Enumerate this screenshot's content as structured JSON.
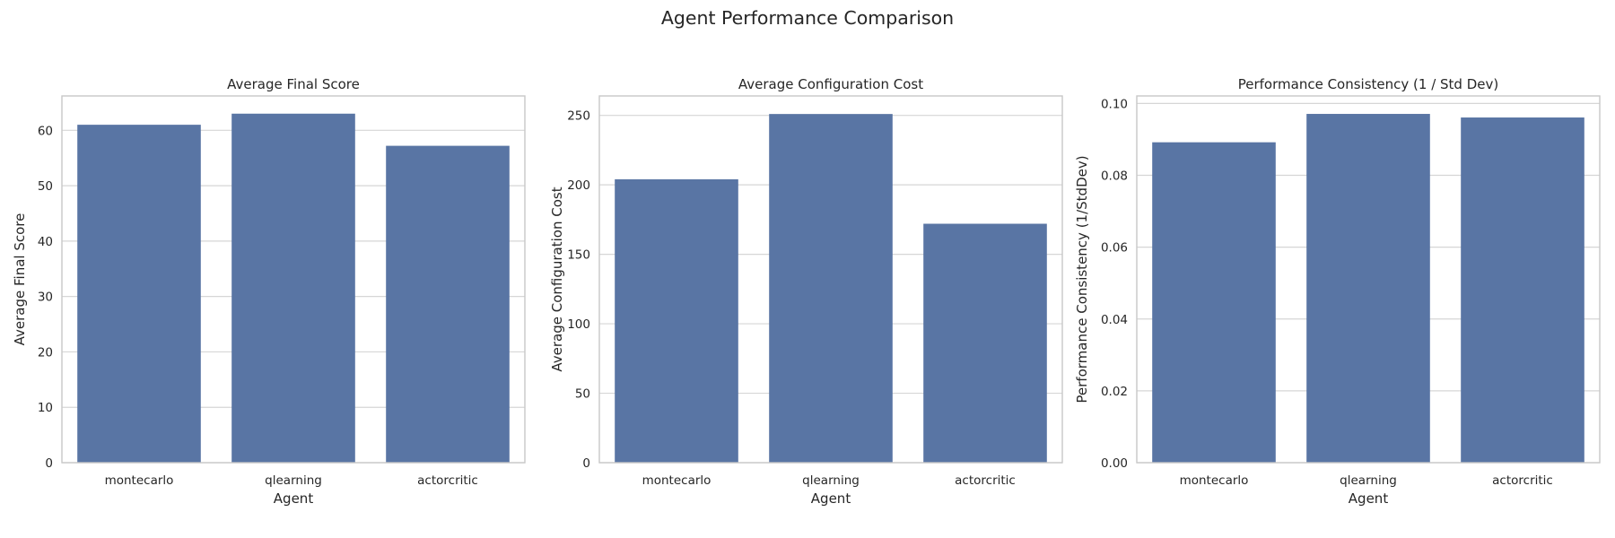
{
  "figure": {
    "suptitle": "Agent Performance Comparison"
  },
  "colors": {
    "bar": "#5975a4",
    "grid": "#d6d6d6",
    "frame": "#c8c8c8",
    "text": "#262626",
    "background": "#ffffff"
  },
  "chart_data": [
    {
      "type": "bar",
      "title": "Average Final Score",
      "xlabel": "Agent",
      "ylabel": "Average Final Score",
      "categories": [
        "montecarlo",
        "qlearning",
        "actorcritic"
      ],
      "values": [
        61,
        63,
        57.2
      ],
      "ylim": [
        0,
        66.2
      ],
      "yticks": [
        0,
        10,
        20,
        30,
        40,
        50,
        60
      ],
      "ytick_labels": [
        "0",
        "10",
        "20",
        "30",
        "40",
        "50",
        "60"
      ],
      "grid": "horizontal"
    },
    {
      "type": "bar",
      "title": "Average Configuration Cost",
      "xlabel": "Agent",
      "ylabel": "Average Configuration Cost",
      "categories": [
        "montecarlo",
        "qlearning",
        "actorcritic"
      ],
      "values": [
        204,
        251,
        172
      ],
      "ylim": [
        0,
        264
      ],
      "yticks": [
        0,
        50,
        100,
        150,
        200,
        250
      ],
      "ytick_labels": [
        "0",
        "50",
        "100",
        "150",
        "200",
        "250"
      ],
      "grid": "horizontal"
    },
    {
      "type": "bar",
      "title": "Performance Consistency (1 / Std Dev)",
      "xlabel": "Agent",
      "ylabel": "Performance Consistency (1/StdDev)",
      "categories": [
        "montecarlo",
        "qlearning",
        "actorcritic"
      ],
      "values": [
        0.0892,
        0.0971,
        0.0961
      ],
      "ylim": [
        0,
        0.1021
      ],
      "yticks": [
        0,
        0.02,
        0.04,
        0.06,
        0.08,
        0.1
      ],
      "ytick_labels": [
        "0.00",
        "0.02",
        "0.04",
        "0.06",
        "0.08",
        "0.10"
      ],
      "grid": "horizontal"
    }
  ]
}
